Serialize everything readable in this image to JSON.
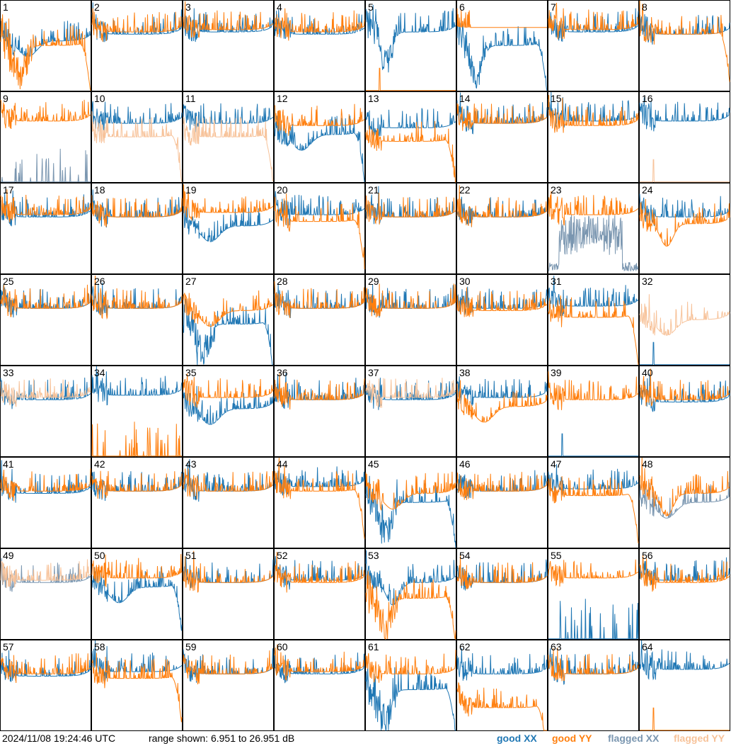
{
  "timestamp": "2024/11/08 19:24:46 UTC",
  "range_text": "range shown: 6.951 to 26.951 dB",
  "legend": {
    "good_xx": "good XX",
    "good_yy": "good YY",
    "flagged_xx": "flagged XX",
    "flagged_yy": "flagged YY"
  },
  "colors": {
    "good_xx": "#1f77b4",
    "good_yy": "#ff7f0e",
    "flagged_xx": "#7a96b0",
    "flagged_yy": "#f7c299",
    "panel_border": "#000000"
  },
  "chart_data": {
    "type": "line",
    "layout": "8x8 small multiples",
    "ylim": [
      6.951,
      26.951
    ],
    "yunit": "dB",
    "panels": [
      {
        "id": "1",
        "xx": "good",
        "yy": "good",
        "xx_shape": "sag",
        "yy_shape": "deep_dip_drop",
        "level_xx": 18,
        "level_yy": 17
      },
      {
        "id": "2",
        "xx": "good",
        "yy": "good",
        "xx_shape": "normal",
        "yy_shape": "normal",
        "level_xx": 19.5,
        "level_yy": 20
      },
      {
        "id": "3",
        "xx": "good",
        "yy": "good",
        "xx_shape": "normal",
        "yy_shape": "normal",
        "level_xx": 20,
        "level_yy": 20.5
      },
      {
        "id": "4",
        "xx": "good",
        "yy": "good",
        "xx_shape": "normal",
        "yy_shape": "normal",
        "level_xx": 19.5,
        "level_yy": 20
      },
      {
        "id": "5",
        "xx": "good",
        "yy": "good",
        "xx_shape": "deep_dip",
        "yy_shape": "dead_spike",
        "level_xx": 20,
        "level_yy": 7
      },
      {
        "id": "6",
        "xx": "good",
        "yy": "good",
        "xx_shape": "deep_dip_drop",
        "yy_shape": "high_flat",
        "level_xx": 17,
        "level_yy": 21
      },
      {
        "id": "7",
        "xx": "good",
        "yy": "good",
        "xx_shape": "normal",
        "yy_shape": "normal",
        "level_xx": 20,
        "level_yy": 20.5
      },
      {
        "id": "8",
        "xx": "good",
        "yy": "good",
        "xx_shape": "normal",
        "yy_shape": "drop_end",
        "level_xx": 19.5,
        "level_yy": 19.5
      },
      {
        "id": "9",
        "xx": "flagged",
        "yy": "good",
        "xx_shape": "sparse",
        "yy_shape": "normal",
        "level_xx": 8,
        "level_yy": 20.5
      },
      {
        "id": "10",
        "xx": "good",
        "yy": "flagged",
        "xx_shape": "normal",
        "yy_shape": "low_drop",
        "level_xx": 20,
        "level_yy": 17
      },
      {
        "id": "11",
        "xx": "good",
        "yy": "flagged",
        "xx_shape": "normal",
        "yy_shape": "low_drop",
        "level_xx": 20,
        "level_yy": 17
      },
      {
        "id": "12",
        "xx": "good",
        "yy": "good",
        "xx_shape": "sag_drop",
        "yy_shape": "normal",
        "level_xx": 17.5,
        "level_yy": 19.5
      },
      {
        "id": "13",
        "xx": "good",
        "yy": "good",
        "xx_shape": "normal",
        "yy_shape": "low_drop",
        "level_xx": 19,
        "level_yy": 16
      },
      {
        "id": "14",
        "xx": "good",
        "yy": "good",
        "xx_shape": "normal",
        "yy_shape": "normal",
        "level_xx": 20,
        "level_yy": 20
      },
      {
        "id": "15",
        "xx": "good",
        "yy": "good",
        "xx_shape": "normal",
        "yy_shape": "normal",
        "level_xx": 20.5,
        "level_yy": 19.5
      },
      {
        "id": "16",
        "xx": "good",
        "yy": "flagged",
        "xx_shape": "normal",
        "yy_shape": "dead_spike",
        "level_xx": 20.5,
        "level_yy": 7
      },
      {
        "id": "17",
        "xx": "good",
        "yy": "good",
        "xx_shape": "normal",
        "yy_shape": "normal",
        "level_xx": 19.5,
        "level_yy": 20
      },
      {
        "id": "18",
        "xx": "good",
        "yy": "good",
        "xx_shape": "normal",
        "yy_shape": "normal",
        "level_xx": 19.5,
        "level_yy": 19.5
      },
      {
        "id": "19",
        "xx": "good",
        "yy": "good",
        "xx_shape": "sag",
        "yy_shape": "normal",
        "level_xx": 17.5,
        "level_yy": 20.5
      },
      {
        "id": "20",
        "xx": "good",
        "yy": "good",
        "xx_shape": "normal",
        "yy_shape": "low_drop",
        "level_xx": 20,
        "level_yy": 18.5
      },
      {
        "id": "21",
        "xx": "good",
        "yy": "good",
        "xx_shape": "normal",
        "yy_shape": "normal",
        "level_xx": 19.5,
        "level_yy": 19.5
      },
      {
        "id": "22",
        "xx": "good",
        "yy": "good",
        "xx_shape": "normal",
        "yy_shape": "normal",
        "level_xx": 19.5,
        "level_yy": 19.5
      },
      {
        "id": "23",
        "xx": "flagged",
        "yy": "good",
        "xx_shape": "noisy_block",
        "yy_shape": "normal",
        "level_xx": 14,
        "level_yy": 20
      },
      {
        "id": "24",
        "xx": "good",
        "yy": "good",
        "xx_shape": "normal",
        "yy_shape": "dip",
        "level_xx": 19.5,
        "level_yy": 18
      },
      {
        "id": "25",
        "xx": "good",
        "yy": "good",
        "xx_shape": "normal",
        "yy_shape": "normal",
        "level_xx": 19.5,
        "level_yy": 19.5
      },
      {
        "id": "26",
        "xx": "good",
        "yy": "good",
        "xx_shape": "normal",
        "yy_shape": "normal",
        "level_xx": 19.5,
        "level_yy": 19.5
      },
      {
        "id": "27",
        "xx": "good",
        "yy": "good",
        "xx_shape": "deep_dip_drop",
        "yy_shape": "sag",
        "level_xx": 16,
        "level_yy": 19
      },
      {
        "id": "28",
        "xx": "good",
        "yy": "good",
        "xx_shape": "normal",
        "yy_shape": "normal",
        "level_xx": 19.5,
        "level_yy": 19.5
      },
      {
        "id": "29",
        "xx": "good",
        "yy": "good",
        "xx_shape": "normal",
        "yy_shape": "normal",
        "level_xx": 19.5,
        "level_yy": 19.5
      },
      {
        "id": "30",
        "xx": "good",
        "yy": "good",
        "xx_shape": "normal",
        "yy_shape": "normal",
        "level_xx": 19.5,
        "level_yy": 19
      },
      {
        "id": "31",
        "xx": "good",
        "yy": "good",
        "xx_shape": "normal",
        "yy_shape": "low_drop",
        "level_xx": 20,
        "level_yy": 17.5
      },
      {
        "id": "32",
        "xx": "good",
        "yy": "flagged",
        "xx_shape": "dead_spike",
        "yy_shape": "sag",
        "level_xx": 7,
        "level_yy": 17
      },
      {
        "id": "33",
        "xx": "good",
        "yy": "flagged",
        "xx_shape": "normal",
        "yy_shape": "normal",
        "level_xx": 19.5,
        "level_yy": 20
      },
      {
        "id": "34",
        "xx": "good",
        "yy": "good",
        "xx_shape": "normal",
        "yy_shape": "sparse",
        "level_xx": 20.5,
        "level_yy": 8
      },
      {
        "id": "35",
        "xx": "good",
        "yy": "good",
        "xx_shape": "sag",
        "yy_shape": "normal",
        "level_xx": 17.5,
        "level_yy": 20
      },
      {
        "id": "36",
        "xx": "good",
        "yy": "good",
        "xx_shape": "normal",
        "yy_shape": "normal",
        "level_xx": 19.5,
        "level_yy": 19.5
      },
      {
        "id": "37",
        "xx": "good",
        "yy": "flagged",
        "xx_shape": "normal",
        "yy_shape": "normal",
        "level_xx": 19.5,
        "level_yy": 20
      },
      {
        "id": "38",
        "xx": "good",
        "yy": "good",
        "xx_shape": "normal",
        "yy_shape": "sag",
        "level_xx": 20,
        "level_yy": 18
      },
      {
        "id": "39",
        "xx": "good",
        "yy": "good",
        "xx_shape": "dead_spike",
        "yy_shape": "normal",
        "level_xx": 7,
        "level_yy": 19.5
      },
      {
        "id": "40",
        "xx": "good",
        "yy": "good",
        "xx_shape": "normal",
        "yy_shape": "normal",
        "level_xx": 19,
        "level_yy": 19.5
      },
      {
        "id": "41",
        "xx": "good",
        "yy": "good",
        "xx_shape": "normal",
        "yy_shape": "normal",
        "level_xx": 19,
        "level_yy": 19.5
      },
      {
        "id": "42",
        "xx": "good",
        "yy": "good",
        "xx_shape": "normal",
        "yy_shape": "normal",
        "level_xx": 19.5,
        "level_yy": 19.5
      },
      {
        "id": "43",
        "xx": "good",
        "yy": "good",
        "xx_shape": "normal",
        "yy_shape": "normal",
        "level_xx": 19.5,
        "level_yy": 19.5
      },
      {
        "id": "44",
        "xx": "good",
        "yy": "good",
        "xx_shape": "normal",
        "yy_shape": "drop_end",
        "level_xx": 20.5,
        "level_yy": 19.5
      },
      {
        "id": "45",
        "xx": "good",
        "yy": "good",
        "xx_shape": "deep_dip_drop",
        "yy_shape": "sag",
        "level_xx": 17,
        "level_yy": 19
      },
      {
        "id": "46",
        "xx": "good",
        "yy": "good",
        "xx_shape": "normal",
        "yy_shape": "normal",
        "level_xx": 19.5,
        "level_yy": 19.5
      },
      {
        "id": "47",
        "xx": "good",
        "yy": "good",
        "xx_shape": "normal",
        "yy_shape": "drop_end",
        "level_xx": 20,
        "level_yy": 18.5
      },
      {
        "id": "48",
        "xx": "flagged",
        "yy": "good",
        "xx_shape": "sag",
        "yy_shape": "dip",
        "level_xx": 17,
        "level_yy": 19
      },
      {
        "id": "49",
        "xx": "flagged",
        "yy": "flagged",
        "xx_shape": "normal",
        "yy_shape": "normal",
        "level_xx": 19.5,
        "level_yy": 20
      },
      {
        "id": "50",
        "xx": "good",
        "yy": "good",
        "xx_shape": "sag_drop",
        "yy_shape": "normal",
        "level_xx": 18.5,
        "level_yy": 20.5
      },
      {
        "id": "51",
        "xx": "good",
        "yy": "good",
        "xx_shape": "normal",
        "yy_shape": "normal",
        "level_xx": 19.5,
        "level_yy": 19.5
      },
      {
        "id": "52",
        "xx": "good",
        "yy": "good",
        "xx_shape": "normal",
        "yy_shape": "normal",
        "level_xx": 20,
        "level_yy": 19.5
      },
      {
        "id": "53",
        "xx": "good",
        "yy": "good",
        "xx_shape": "dip",
        "yy_shape": "deep_dip_drop",
        "level_xx": 19.5,
        "level_yy": 16
      },
      {
        "id": "54",
        "xx": "good",
        "yy": "good",
        "xx_shape": "normal",
        "yy_shape": "normal",
        "level_xx": 19.5,
        "level_yy": 19.5
      },
      {
        "id": "55",
        "xx": "good",
        "yy": "good",
        "xx_shape": "sparse",
        "yy_shape": "normal",
        "level_xx": 9,
        "level_yy": 20.5
      },
      {
        "id": "56",
        "xx": "good",
        "yy": "good",
        "xx_shape": "normal",
        "yy_shape": "normal",
        "level_xx": 20,
        "level_yy": 19.5
      },
      {
        "id": "57",
        "xx": "good",
        "yy": "good",
        "xx_shape": "normal",
        "yy_shape": "normal",
        "level_xx": 19,
        "level_yy": 19.5
      },
      {
        "id": "58",
        "xx": "good",
        "yy": "good",
        "xx_shape": "normal",
        "yy_shape": "low_drop",
        "level_xx": 20,
        "level_yy": 18.5
      },
      {
        "id": "59",
        "xx": "good",
        "yy": "good",
        "xx_shape": "normal",
        "yy_shape": "normal",
        "level_xx": 19.5,
        "level_yy": 19.5
      },
      {
        "id": "60",
        "xx": "good",
        "yy": "good",
        "xx_shape": "normal",
        "yy_shape": "normal",
        "level_xx": 19.5,
        "level_yy": 20
      },
      {
        "id": "61",
        "xx": "good",
        "yy": "good",
        "xx_shape": "deep_dip_drop",
        "yy_shape": "normal",
        "level_xx": 16,
        "level_yy": 19.5
      },
      {
        "id": "62",
        "xx": "good",
        "yy": "good",
        "xx_shape": "normal",
        "yy_shape": "low_drop",
        "level_xx": 19.5,
        "level_yy": 12
      },
      {
        "id": "63",
        "xx": "good",
        "yy": "good",
        "xx_shape": "normal",
        "yy_shape": "normal",
        "level_xx": 19.5,
        "level_yy": 19.5
      },
      {
        "id": "64",
        "xx": "good",
        "yy": "good",
        "xx_shape": "normal",
        "yy_shape": "dead_spike",
        "level_xx": 20.5,
        "level_yy": 7
      }
    ]
  }
}
